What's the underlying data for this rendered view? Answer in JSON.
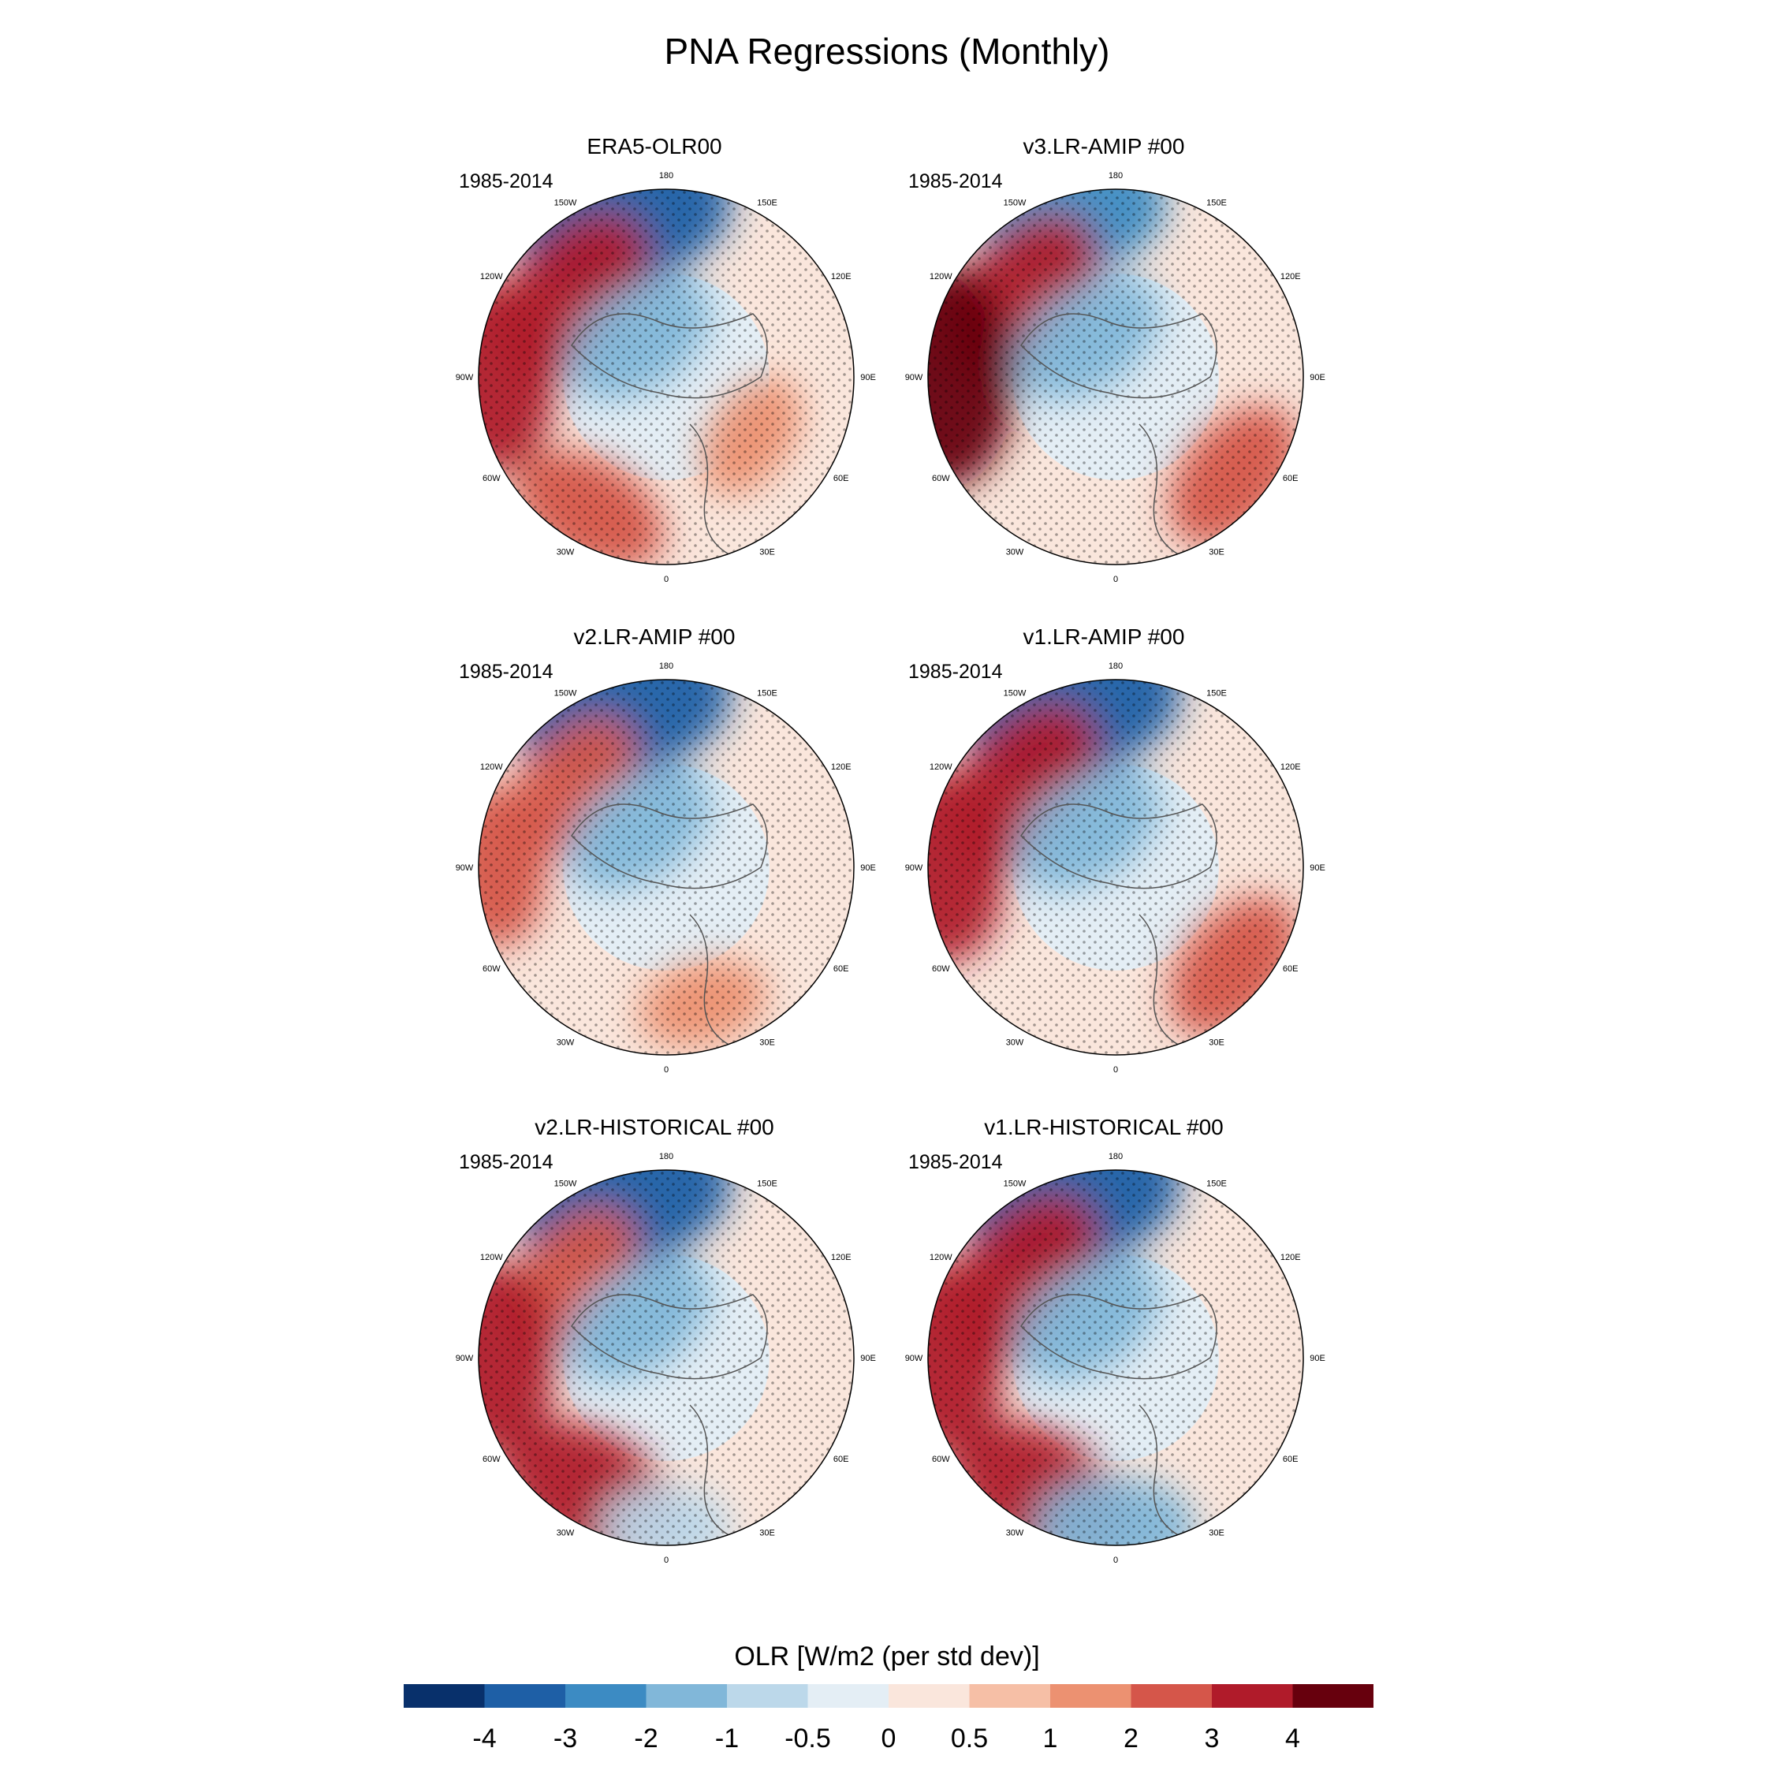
{
  "title": "PNA Regressions (Monthly)",
  "chart_data": {
    "type": "heatmap",
    "projection": "north-polar-stereographic",
    "variable": "OLR",
    "units": "W/m2 (per std dev)",
    "longitude_labels": [
      "180",
      "150E",
      "120E",
      "90E",
      "60E",
      "30E",
      "0",
      "30W",
      "60W",
      "90W",
      "120W",
      "150W"
    ],
    "panels": [
      {
        "title": "ERA5-OLR00",
        "period": "1985-2014",
        "stippling": "hatched = significant",
        "features": [
          {
            "region": "North Pacific (150W-180)",
            "sign": "negative",
            "peak": -4
          },
          {
            "region": "Western North America (120W)",
            "sign": "positive",
            "peak": 3
          },
          {
            "region": "Arctic / Canadian Archipelago",
            "sign": "negative",
            "peak": -2
          },
          {
            "region": "Eastern Pacific (90W)",
            "sign": "positive",
            "peak": 3
          },
          {
            "region": "Subtropical Atlantic (30W-60W)",
            "sign": "positive",
            "peak": 2
          },
          {
            "region": "Eurasia (30E-60E)",
            "sign": "positive",
            "peak": 1
          }
        ]
      },
      {
        "title": "v3.LR-AMIP  #00",
        "period": "1985-2014",
        "stippling": "hatched = significant",
        "features": [
          {
            "region": "North Pacific (150W-180)",
            "sign": "negative",
            "peak": -3
          },
          {
            "region": "Western North America (120W)",
            "sign": "positive",
            "peak": 3
          },
          {
            "region": "Arctic",
            "sign": "negative",
            "peak": -2
          },
          {
            "region": "Eastern Pacific (90W)",
            "sign": "positive",
            "peak": 4
          },
          {
            "region": "Subtropical ring (0-90E)",
            "sign": "positive",
            "peak": 2
          }
        ]
      },
      {
        "title": "v2.LR-AMIP  #00",
        "period": "1985-2014",
        "stippling": "hatched = significant",
        "features": [
          {
            "region": "North Pacific (150W-180)",
            "sign": "negative",
            "peak": -4
          },
          {
            "region": "Western North America (120W)",
            "sign": "positive",
            "peak": 2
          },
          {
            "region": "Arctic",
            "sign": "negative",
            "peak": -2
          },
          {
            "region": "Eastern Pacific (90W)",
            "sign": "positive",
            "peak": 2
          },
          {
            "region": "Atlantic / Europe",
            "sign": "positive",
            "peak": 1
          }
        ]
      },
      {
        "title": "v1.LR-AMIP  #00",
        "period": "1985-2014",
        "stippling": "hatched = significant",
        "features": [
          {
            "region": "North Pacific (150W-180)",
            "sign": "negative",
            "peak": -4
          },
          {
            "region": "Western North America (120W)",
            "sign": "positive",
            "peak": 3
          },
          {
            "region": "Arctic",
            "sign": "negative",
            "peak": -2
          },
          {
            "region": "Eastern Pacific (90W)",
            "sign": "positive",
            "peak": 3
          },
          {
            "region": "Subtropical ring (0-90E)",
            "sign": "positive",
            "peak": 2
          }
        ]
      },
      {
        "title": "v2.LR-HISTORICAL  #00",
        "period": "1985-2014",
        "stippling": "hatched = significant",
        "features": [
          {
            "region": "North Pacific (150W-180)",
            "sign": "negative",
            "peak": -4
          },
          {
            "region": "Western North America (120W)",
            "sign": "positive",
            "peak": 2
          },
          {
            "region": "Arctic",
            "sign": "negative",
            "peak": -2
          },
          {
            "region": "Eastern Pacific (90W)",
            "sign": "positive",
            "peak": 3
          },
          {
            "region": "Subtropical Atlantic (30W)",
            "sign": "positive",
            "peak": 3
          },
          {
            "region": "Africa (0-30E)",
            "sign": "negative",
            "peak": -1
          }
        ]
      },
      {
        "title": "v1.LR-HISTORICAL  #00",
        "period": "1985-2014",
        "stippling": "hatched = significant",
        "features": [
          {
            "region": "North Pacific (150W-180)",
            "sign": "negative",
            "peak": -4
          },
          {
            "region": "Western North America (120W)",
            "sign": "positive",
            "peak": 3
          },
          {
            "region": "Arctic",
            "sign": "negative",
            "peak": -2
          },
          {
            "region": "Eastern Pacific (90W)",
            "sign": "positive",
            "peak": 3
          },
          {
            "region": "Subtropical Atlantic (30W)",
            "sign": "positive",
            "peak": 3
          },
          {
            "region": "Africa (0)",
            "sign": "negative",
            "peak": -2
          }
        ]
      }
    ],
    "colorbar": {
      "title": "OLR [W/m2 (per std dev)]",
      "levels": [
        "-4",
        "-3",
        "-2",
        "-1",
        "-0.5",
        "0",
        "0.5",
        "1",
        "2",
        "3",
        "4"
      ],
      "colors": [
        "#08306b",
        "#1e5fa6",
        "#3c8bc3",
        "#81b7d9",
        "#bcd8ea",
        "#e4eef5",
        "#fae6dc",
        "#f6bfa6",
        "#ec9171",
        "#d5564a",
        "#b01b2a",
        "#67000d"
      ]
    }
  }
}
